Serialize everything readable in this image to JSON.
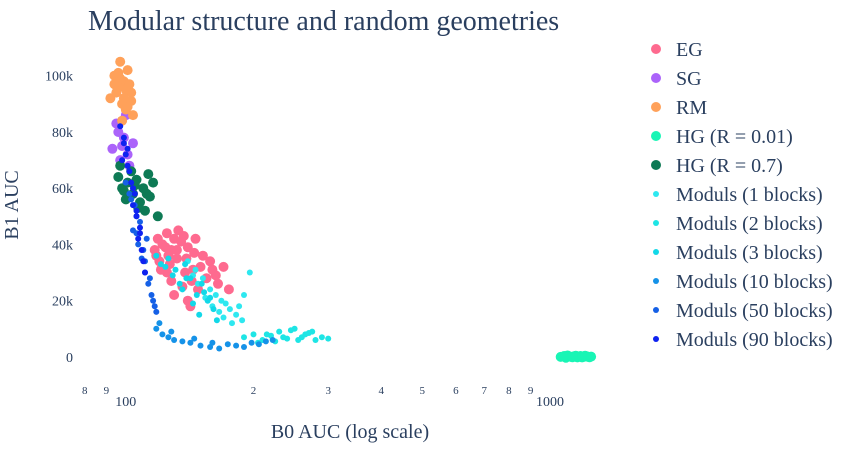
{
  "chart_data": {
    "type": "scatter",
    "title": "Modular structure and random geometries",
    "xlabel": "B0 AUC (log scale)",
    "ylabel": "B1 AUC",
    "x_scale": "log",
    "xlim": [
      78,
      1400
    ],
    "ylim": [
      -10000,
      112000
    ],
    "x_major_ticks": [
      {
        "value": 100,
        "label": "100"
      },
      {
        "value": 1000,
        "label": "1000"
      }
    ],
    "x_minor_ticks": [
      {
        "value": 80,
        "label": "8"
      },
      {
        "value": 90,
        "label": "9"
      },
      {
        "value": 200,
        "label": "2"
      },
      {
        "value": 300,
        "label": "3"
      },
      {
        "value": 400,
        "label": "4"
      },
      {
        "value": 500,
        "label": "5"
      },
      {
        "value": 600,
        "label": "6"
      },
      {
        "value": 700,
        "label": "7"
      },
      {
        "value": 800,
        "label": "8"
      },
      {
        "value": 900,
        "label": "9"
      }
    ],
    "y_ticks": [
      {
        "value": 0,
        "label": "0"
      },
      {
        "value": 20000,
        "label": "20k"
      },
      {
        "value": 40000,
        "label": "40k"
      },
      {
        "value": 60000,
        "label": "60k"
      },
      {
        "value": 80000,
        "label": "80k"
      },
      {
        "value": 100000,
        "label": "100k"
      }
    ],
    "grid": false,
    "legend_position": "right",
    "series": [
      {
        "name": "EG",
        "color": "#fe6a8f",
        "size": "large",
        "points": [
          [
            125,
            44000
          ],
          [
            130,
            42000
          ],
          [
            122,
            40000
          ],
          [
            135,
            41000
          ],
          [
            128,
            38000
          ],
          [
            118,
            36000
          ],
          [
            140,
            39000
          ],
          [
            132,
            35000
          ],
          [
            127,
            33000
          ],
          [
            145,
            37000
          ],
          [
            120,
            34000
          ],
          [
            138,
            30000
          ],
          [
            150,
            32000
          ],
          [
            155,
            28000
          ],
          [
            143,
            27000
          ],
          [
            160,
            31000
          ],
          [
            136,
            25000
          ],
          [
            148,
            24000
          ],
          [
            130,
            22000
          ],
          [
            142,
            18000
          ],
          [
            125,
            30000
          ],
          [
            117,
            38000
          ],
          [
            133,
            45000
          ],
          [
            137,
            43000
          ],
          [
            146,
            42000
          ],
          [
            152,
            36000
          ],
          [
            158,
            34000
          ],
          [
            165,
            26000
          ],
          [
            170,
            32000
          ],
          [
            163,
            29000
          ],
          [
            128,
            27000
          ],
          [
            121,
            31000
          ],
          [
            140,
            20000
          ],
          [
            132,
            38000
          ],
          [
            126,
            36000
          ],
          [
            119,
            42000
          ],
          [
            124,
            39000
          ],
          [
            139,
            35000
          ],
          [
            144,
            31000
          ],
          [
            175,
            24000
          ]
        ]
      },
      {
        "name": "SG",
        "color": "#ab63fa",
        "size": "large",
        "points": [
          [
            93,
            74000
          ],
          [
            96,
            80000
          ],
          [
            99,
            78000
          ],
          [
            101,
            72000
          ],
          [
            97,
            70000
          ],
          [
            104,
            76000
          ],
          [
            95,
            83000
          ],
          [
            100,
            86000
          ],
          [
            102,
            68000
          ],
          [
            98,
            75000
          ]
        ]
      },
      {
        "name": "RM",
        "color": "#ffa15a",
        "size": "large",
        "points": [
          [
            97,
            105000
          ],
          [
            94,
            100000
          ],
          [
            99,
            98000
          ],
          [
            101,
            102000
          ],
          [
            96,
            96000
          ],
          [
            103,
            94000
          ],
          [
            92,
            92000
          ],
          [
            98,
            90000
          ],
          [
            100,
            88000
          ],
          [
            104,
            86000
          ],
          [
            95,
            94000
          ],
          [
            99,
            92000
          ],
          [
            102,
            97000
          ],
          [
            97,
            99000
          ],
          [
            96,
            101000
          ],
          [
            100,
            95000
          ],
          [
            98,
            84000
          ],
          [
            101,
            89000
          ],
          [
            94,
            97000
          ],
          [
            103,
            91000
          ]
        ]
      },
      {
        "name": "HG (R = 0.01)",
        "color": "#19f5b5",
        "size": "large",
        "points": [
          [
            1060,
            0
          ],
          [
            1080,
            300
          ],
          [
            1100,
            500
          ],
          [
            1120,
            0
          ],
          [
            1140,
            200
          ],
          [
            1160,
            -200
          ],
          [
            1180,
            300
          ],
          [
            1200,
            0
          ],
          [
            1220,
            200
          ],
          [
            1240,
            -100
          ],
          [
            1090,
            -300
          ],
          [
            1110,
            200
          ],
          [
            1130,
            -100
          ],
          [
            1150,
            400
          ],
          [
            1170,
            100
          ],
          [
            1190,
            -200
          ],
          [
            1210,
            400
          ],
          [
            1230,
            0
          ],
          [
            1250,
            100
          ],
          [
            1075,
            100
          ]
        ]
      },
      {
        "name": "HG (R = 0.7)",
        "color": "#0e7a55",
        "size": "large",
        "points": [
          [
            96,
            64000
          ],
          [
            98,
            60000
          ],
          [
            101,
            62000
          ],
          [
            104,
            58000
          ],
          [
            100,
            56000
          ],
          [
            108,
            55000
          ],
          [
            112,
            58000
          ],
          [
            116,
            62000
          ],
          [
            119,
            50000
          ],
          [
            97,
            68000
          ],
          [
            103,
            66000
          ],
          [
            107,
            53000
          ],
          [
            110,
            60000
          ],
          [
            114,
            57000
          ],
          [
            99,
            59000
          ],
          [
            105,
            61000
          ],
          [
            111,
            52000
          ],
          [
            113,
            65000
          ],
          [
            102,
            57000
          ],
          [
            106,
            63000
          ]
        ]
      },
      {
        "name": "Moduls (1 blocks)",
        "color": "#2ee8f0",
        "size": "small",
        "points": [
          [
            140,
            34000
          ],
          [
            146,
            31000
          ],
          [
            152,
            28000
          ],
          [
            158,
            24000
          ],
          [
            163,
            22000
          ],
          [
            168,
            20000
          ],
          [
            172,
            19000
          ],
          [
            176,
            17000
          ],
          [
            182,
            15000
          ],
          [
            188,
            13000
          ],
          [
            148,
            26000
          ],
          [
            154,
            21000
          ],
          [
            160,
            18000
          ],
          [
            166,
            16000
          ],
          [
            170,
            14000
          ],
          [
            178,
            12000
          ],
          [
            185,
            18000
          ],
          [
            190,
            22000
          ],
          [
            196,
            30000
          ],
          [
            144,
            29000
          ]
        ]
      },
      {
        "name": "Moduls (2 blocks)",
        "color": "#1ee5e5",
        "size": "small",
        "points": [
          [
            190,
            7000
          ],
          [
            200,
            8000
          ],
          [
            210,
            6000
          ],
          [
            220,
            7500
          ],
          [
            230,
            9000
          ],
          [
            240,
            6500
          ],
          [
            250,
            10000
          ],
          [
            260,
            7000
          ],
          [
            270,
            8500
          ],
          [
            280,
            6000
          ],
          [
            205,
            5000
          ],
          [
            215,
            8000
          ],
          [
            235,
            7000
          ],
          [
            245,
            9500
          ],
          [
            255,
            6000
          ],
          [
            265,
            8000
          ],
          [
            275,
            9000
          ],
          [
            290,
            7000
          ],
          [
            300,
            6500
          ],
          [
            225,
            5500
          ]
        ]
      },
      {
        "name": "Moduls (3 blocks)",
        "color": "#12d8e8",
        "size": "small",
        "points": [
          [
            118,
            36000
          ],
          [
            124,
            32000
          ],
          [
            129,
            29000
          ],
          [
            134,
            26000
          ],
          [
            138,
            33000
          ],
          [
            142,
            28000
          ],
          [
            147,
            22000
          ],
          [
            151,
            26000
          ],
          [
            156,
            20000
          ],
          [
            161,
            17000
          ],
          [
            126,
            35000
          ],
          [
            131,
            31000
          ],
          [
            136,
            24000
          ],
          [
            144,
            19000
          ],
          [
            149,
            15000
          ],
          [
            153,
            23000
          ],
          [
            158,
            21000
          ],
          [
            121,
            33000
          ],
          [
            139,
            28000
          ],
          [
            164,
            13000
          ]
        ]
      },
      {
        "name": "Moduls (10 blocks)",
        "color": "#1592e8",
        "size": "small",
        "points": [
          [
            118,
            10000
          ],
          [
            122,
            8000
          ],
          [
            126,
            7000
          ],
          [
            130,
            6000
          ],
          [
            136,
            5500
          ],
          [
            142,
            5000
          ],
          [
            150,
            4000
          ],
          [
            158,
            3500
          ],
          [
            166,
            3000
          ],
          [
            174,
            4500
          ],
          [
            182,
            4000
          ],
          [
            190,
            3500
          ],
          [
            198,
            5000
          ],
          [
            206,
            4500
          ],
          [
            214,
            5500
          ],
          [
            222,
            6000
          ],
          [
            120,
            12000
          ],
          [
            128,
            9000
          ],
          [
            145,
            6500
          ],
          [
            160,
            5000
          ]
        ]
      },
      {
        "name": "Moduls (50 blocks)",
        "color": "#1560e6",
        "size": "small",
        "points": [
          [
            100,
            62000
          ],
          [
            103,
            56000
          ],
          [
            106,
            50000
          ],
          [
            104,
            45000
          ],
          [
            107,
            40000
          ],
          [
            109,
            35000
          ],
          [
            111,
            30000
          ],
          [
            113,
            26000
          ],
          [
            115,
            22000
          ],
          [
            117,
            18000
          ],
          [
            110,
            38000
          ],
          [
            112,
            42000
          ],
          [
            105,
            54000
          ],
          [
            108,
            48000
          ],
          [
            114,
            28000
          ],
          [
            116,
            20000
          ],
          [
            102,
            58000
          ],
          [
            106,
            44000
          ],
          [
            118,
            16000
          ],
          [
            111,
            34000
          ]
        ]
      },
      {
        "name": "Moduls (90 blocks)",
        "color": "#0e22f0",
        "size": "small",
        "points": [
          [
            97,
            82000
          ],
          [
            99,
            78000
          ],
          [
            101,
            74000
          ],
          [
            98,
            70000
          ],
          [
            102,
            66000
          ],
          [
            100,
            72000
          ],
          [
            103,
            62000
          ],
          [
            105,
            58000
          ],
          [
            104,
            54000
          ],
          [
            106,
            50000
          ],
          [
            108,
            46000
          ],
          [
            107,
            42000
          ],
          [
            109,
            38000
          ],
          [
            110,
            34000
          ],
          [
            111,
            30000
          ],
          [
            99,
            76000
          ],
          [
            101,
            68000
          ],
          [
            104,
            60000
          ],
          [
            106,
            52000
          ],
          [
            108,
            44000
          ]
        ]
      }
    ]
  }
}
